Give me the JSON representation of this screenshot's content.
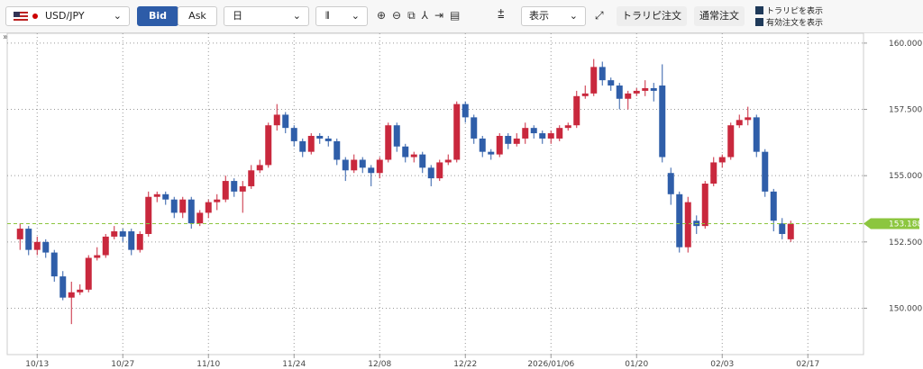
{
  "toolbar": {
    "symbol": "USD/JPY",
    "bid": "Bid",
    "ask": "Ask",
    "period": "日",
    "display": "表示",
    "trap_order": "トラリピ注文",
    "normal_order": "通常注文",
    "show_trap": "トラリピを表示",
    "show_orders": "有効注文を表示",
    "collapse": "»"
  },
  "chart_data": {
    "type": "candlestick",
    "open": [
      152.6,
      153.0,
      152.2,
      152.5,
      152.1,
      151.2,
      150.4,
      150.6,
      150.7,
      151.9,
      152.0,
      152.7,
      152.9,
      152.9,
      152.2,
      152.8,
      154.2,
      154.3,
      154.1,
      153.6,
      154.1,
      153.2,
      153.6,
      154.0,
      154.1,
      154.8,
      154.4,
      154.6,
      155.2,
      155.4,
      156.9,
      157.3,
      156.8,
      156.3,
      155.9,
      156.5,
      156.4,
      156.3,
      155.6,
      155.2,
      155.6,
      155.3,
      155.1,
      155.6,
      156.9,
      156.1,
      155.7,
      155.8,
      155.3,
      154.9,
      155.5,
      155.6,
      157.7,
      157.2,
      156.4,
      155.9,
      155.8,
      156.5,
      156.2,
      156.4,
      156.8,
      156.6,
      156.4,
      156.4,
      156.8,
      156.9,
      158.0,
      158.1,
      159.1,
      158.6,
      158.4,
      157.9,
      158.1,
      158.2,
      158.3,
      158.4,
      155.1,
      154.3,
      152.3,
      153.3,
      153.1,
      154.7,
      155.5,
      155.7,
      156.9,
      157.1,
      157.2,
      155.9,
      154.4,
      153.2,
      152.6
    ],
    "high": [
      153.2,
      153.1,
      152.7,
      152.6,
      152.2,
      151.4,
      151.0,
      150.9,
      152.0,
      152.3,
      152.8,
      153.1,
      153.0,
      153.0,
      152.9,
      154.4,
      154.4,
      154.4,
      154.2,
      154.2,
      154.2,
      153.7,
      154.1,
      154.3,
      155.0,
      154.9,
      154.8,
      155.4,
      155.6,
      157.0,
      157.7,
      157.4,
      156.9,
      156.4,
      156.6,
      156.6,
      156.5,
      156.4,
      155.7,
      155.8,
      155.7,
      155.4,
      155.7,
      157.0,
      157.0,
      156.2,
      155.9,
      155.9,
      155.4,
      155.6,
      155.8,
      157.8,
      157.8,
      157.3,
      156.5,
      156.0,
      156.6,
      156.6,
      156.6,
      157.0,
      156.9,
      156.7,
      156.7,
      156.9,
      157.0,
      158.2,
      158.4,
      159.4,
      159.3,
      158.7,
      158.5,
      158.2,
      158.3,
      158.6,
      158.5,
      159.2,
      155.3,
      154.4,
      154.2,
      153.5,
      154.8,
      155.7,
      155.8,
      157.0,
      157.3,
      157.6,
      157.3,
      156.0,
      154.5,
      153.4,
      153.3
    ],
    "low": [
      152.2,
      152.0,
      152.0,
      151.9,
      151.0,
      150.3,
      149.4,
      150.5,
      150.6,
      151.8,
      151.9,
      152.6,
      152.5,
      152.0,
      152.1,
      152.7,
      154.0,
      153.9,
      153.4,
      153.4,
      153.0,
      153.1,
      153.4,
      153.7,
      154.0,
      154.2,
      153.6,
      154.5,
      155.1,
      155.3,
      156.7,
      156.6,
      156.1,
      155.7,
      155.8,
      156.2,
      156.1,
      155.4,
      154.8,
      155.1,
      155.1,
      154.6,
      154.9,
      155.5,
      155.9,
      155.5,
      155.5,
      155.1,
      154.6,
      154.8,
      155.4,
      155.5,
      157.0,
      156.2,
      155.7,
      155.6,
      155.7,
      156.0,
      156.1,
      156.2,
      156.4,
      156.2,
      156.2,
      156.3,
      156.7,
      156.8,
      157.9,
      158.0,
      158.4,
      158.2,
      157.5,
      157.5,
      158.0,
      158.0,
      157.8,
      155.5,
      153.9,
      152.1,
      152.1,
      152.8,
      153.0,
      154.6,
      155.3,
      155.6,
      156.8,
      156.9,
      155.7,
      154.2,
      152.9,
      152.6,
      152.5
    ],
    "close": [
      153.0,
      152.2,
      152.5,
      152.1,
      151.2,
      150.4,
      150.6,
      150.7,
      151.9,
      152.0,
      152.7,
      152.9,
      152.7,
      152.2,
      152.8,
      154.2,
      154.3,
      154.1,
      153.6,
      154.1,
      153.2,
      153.6,
      154.0,
      154.1,
      154.8,
      154.4,
      154.6,
      155.2,
      155.4,
      156.9,
      157.3,
      156.8,
      156.3,
      155.9,
      156.5,
      156.4,
      156.3,
      155.6,
      155.2,
      155.6,
      155.3,
      155.1,
      155.6,
      156.9,
      156.1,
      155.7,
      155.8,
      155.3,
      154.9,
      155.5,
      155.6,
      157.7,
      157.2,
      156.4,
      155.9,
      155.8,
      156.5,
      156.2,
      156.4,
      156.8,
      156.6,
      156.4,
      156.6,
      156.8,
      156.9,
      158.0,
      158.1,
      159.1,
      158.6,
      158.4,
      157.9,
      158.1,
      158.2,
      158.3,
      158.2,
      155.7,
      154.3,
      152.3,
      154.0,
      153.1,
      154.7,
      155.5,
      155.7,
      156.9,
      157.1,
      157.2,
      155.9,
      154.4,
      153.3,
      152.8,
      153.188
    ],
    "up_color": "#c9283d",
    "down_color": "#2f5ea9",
    "ylim": [
      148.25,
      160.37
    ],
    "yticks": [
      {
        "value": 150,
        "label": "150.000"
      },
      {
        "value": 152.5,
        "label": "152.500"
      },
      {
        "value": 155,
        "label": "155.000"
      },
      {
        "value": 157.5,
        "label": "157.500"
      },
      {
        "value": 160,
        "label": "160.000"
      }
    ],
    "xlim": [
      -1.5,
      98.5
    ],
    "xticks": [
      {
        "value": 2,
        "label": "10/13"
      },
      {
        "value": 12,
        "label": "10/27"
      },
      {
        "value": 22,
        "label": "11/10"
      },
      {
        "value": 32,
        "label": "11/24"
      },
      {
        "value": 42,
        "label": "12/08"
      },
      {
        "value": 52,
        "label": "12/22"
      },
      {
        "value": 62,
        "label": "2026/01/06"
      },
      {
        "value": 72,
        "label": "01/20"
      },
      {
        "value": 82,
        "label": "02/03"
      },
      {
        "value": 92,
        "label": "02/17"
      }
    ],
    "current_price": 153.188,
    "current_color": "#8cc63f",
    "grid": true
  }
}
